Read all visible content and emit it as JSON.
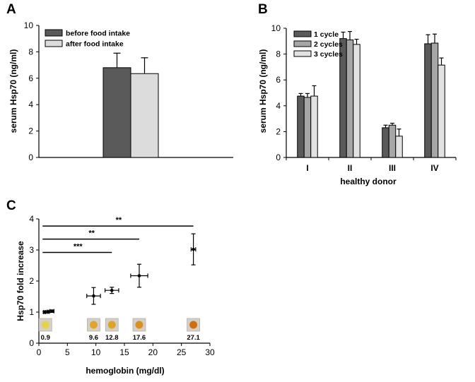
{
  "chart_data": [
    {
      "panel": "A",
      "type": "bar",
      "title": "",
      "xlabel": "",
      "ylabel": "serum Hsp70 (ng/ml)",
      "ylim": [
        0,
        10
      ],
      "yticks": [
        0,
        2,
        4,
        6,
        8,
        10
      ],
      "series": [
        {
          "name": "before food intake",
          "color": "#5a5a5a",
          "values": [
            6.8
          ],
          "errors": [
            1.1
          ]
        },
        {
          "name": "after food intake",
          "color": "#dcdcdc",
          "values": [
            6.35
          ],
          "errors": [
            1.2
          ]
        }
      ],
      "legend": "top-left",
      "grid": false
    },
    {
      "panel": "B",
      "type": "bar",
      "title": "",
      "xlabel": "healthy donor",
      "ylabel": "serum Hsp70 (ng/ml)",
      "ylim": [
        0,
        10
      ],
      "yticks": [
        0,
        2,
        4,
        6,
        8,
        10
      ],
      "categories": [
        "I",
        "II",
        "III",
        "IV"
      ],
      "series": [
        {
          "name": "1 cycle",
          "color": "#5a5a5a",
          "values": [
            4.75,
            9.2,
            2.3,
            8.8
          ],
          "errors": [
            0.2,
            0.5,
            0.2,
            0.7
          ]
        },
        {
          "name": "2 cycles",
          "color": "#a6a6a6",
          "values": [
            4.65,
            9.1,
            2.5,
            8.85
          ],
          "errors": [
            0.3,
            0.65,
            0.15,
            0.7
          ]
        },
        {
          "name": "3 cycles",
          "color": "#e2e2e2",
          "values": [
            4.75,
            8.75,
            1.65,
            7.15
          ],
          "errors": [
            0.8,
            0.4,
            0.55,
            0.55
          ]
        }
      ],
      "legend": "top-left",
      "grid": false
    },
    {
      "panel": "C",
      "type": "scatter",
      "title": "",
      "xlabel": "hemoglobin (mg/dl)",
      "ylabel": "Hsp70 fold increase",
      "xlim": [
        0,
        30
      ],
      "ylim": [
        0,
        4
      ],
      "xticks": [
        0,
        5,
        10,
        15,
        20,
        25,
        30
      ],
      "yticks": [
        0,
        1,
        2,
        3,
        4
      ],
      "points": [
        {
          "x": 1,
          "y": 1.0,
          "xerr": 0.15,
          "yerr": 0.03
        },
        {
          "x": 1.6,
          "y": 1.01,
          "xerr": 0.15,
          "yerr": 0.03
        },
        {
          "x": 2.3,
          "y": 1.03,
          "xerr": 0.35,
          "yerr": 0.04
        },
        {
          "x": 9.6,
          "y": 1.52,
          "xerr": 1.2,
          "yerr": 0.27
        },
        {
          "x": 12.8,
          "y": 1.7,
          "xerr": 1.2,
          "yerr": 0.1
        },
        {
          "x": 17.6,
          "y": 2.17,
          "xerr": 1.5,
          "yerr": 0.37
        },
        {
          "x": 27.1,
          "y": 3.02,
          "xerr": 0.4,
          "yerr": 0.5
        }
      ],
      "sample_labels": [
        {
          "x": 0.9,
          "label": "0.9",
          "color": "#e4d24a"
        },
        {
          "x": 9.6,
          "label": "9.6",
          "color": "#e0a52a"
        },
        {
          "x": 12.8,
          "label": "12.8",
          "color": "#dea326"
        },
        {
          "x": 17.6,
          "label": "17.6",
          "color": "#d9901e"
        },
        {
          "x": 27.1,
          "label": "27.1",
          "color": "#cf6f14"
        }
      ],
      "significance": [
        {
          "label": "***",
          "y": 2.92,
          "x_start": 0.9,
          "x_end": 12.8
        },
        {
          "label": "**",
          "y": 3.35,
          "x_start": 0.9,
          "x_end": 17.6
        },
        {
          "label": "**",
          "y": 3.77,
          "x_start": 0.9,
          "x_end": 27.1
        }
      ],
      "grid": false
    }
  ]
}
